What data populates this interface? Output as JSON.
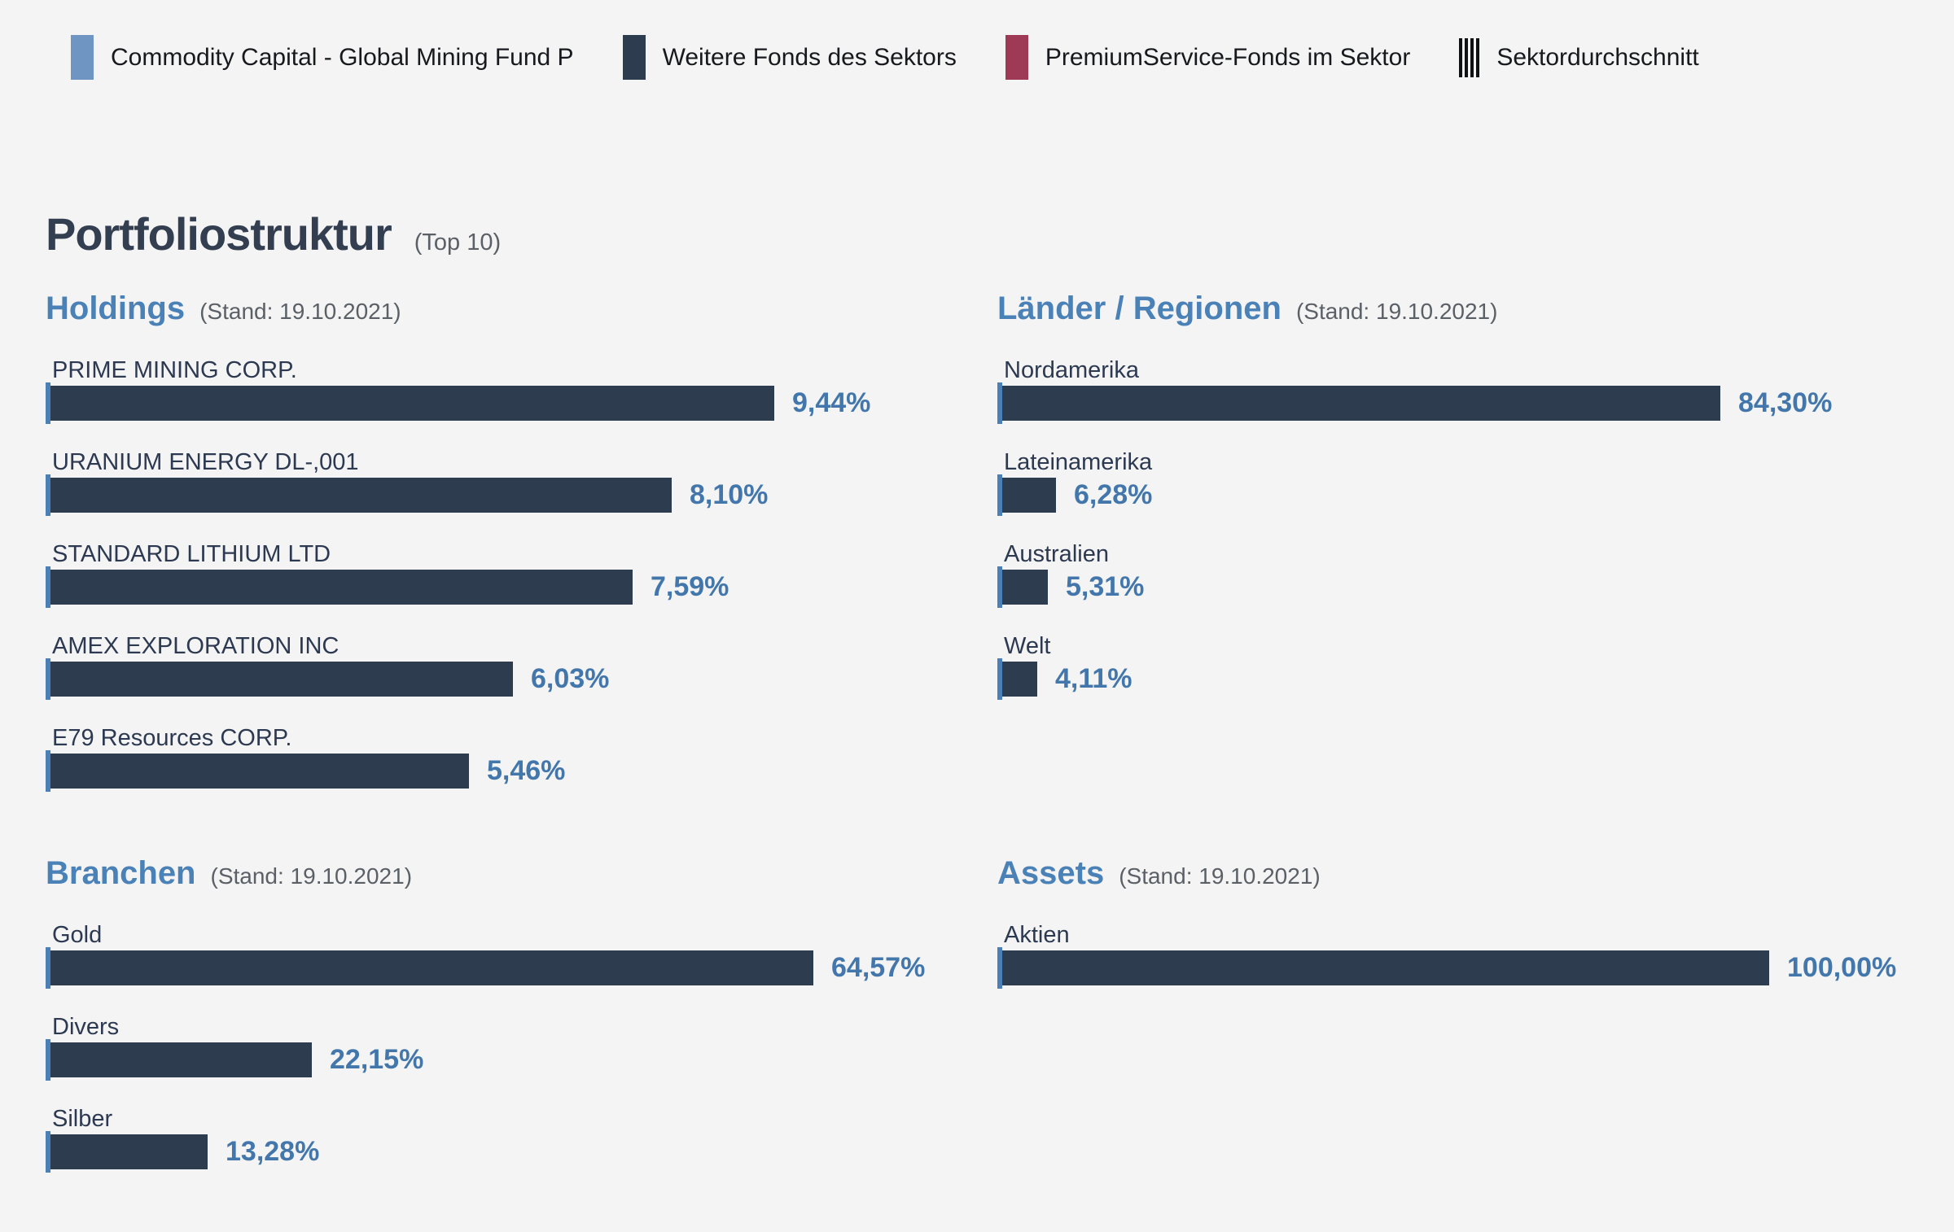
{
  "colors": {
    "background": "#f4f4f5",
    "navy_bar": "#2e3c50",
    "fund_blue": "#6f96c3",
    "premium_red": "#9e3a55",
    "marker_blue": "#4a80b5",
    "value_blue": "#4377ac",
    "heading_blue": "#4a81b6",
    "title_color": "#333e50",
    "label_color": "#2c3950",
    "muted": "#5b6066",
    "legend_text": "#17191d",
    "stripe_black": "#101114"
  },
  "legend": {
    "items": [
      {
        "label": "Commodity Capital - Global Mining Fund P",
        "swatch": "square",
        "color_key": "fund_blue",
        "icon": "fund-swatch-icon"
      },
      {
        "label": "Weitere Fonds des Sektors",
        "swatch": "square",
        "color_key": "navy_bar",
        "icon": "sector-funds-swatch-icon"
      },
      {
        "label": "PremiumService-Fonds im Sektor",
        "swatch": "square",
        "color_key": "premium_red",
        "icon": "premium-funds-swatch-icon"
      },
      {
        "label": "Sektordurchschnitt",
        "swatch": "stripes",
        "icon": "sector-average-icon"
      }
    ]
  },
  "page": {
    "title": "Portfoliostruktur",
    "title_suffix": "(Top 10)"
  },
  "chart_data": [
    {
      "id": "holdings",
      "type": "bar",
      "orientation": "horizontal",
      "title": "Holdings",
      "as_of": "(Stand: 19.10.2021)",
      "categories": [
        "PRIME MINING CORP.",
        "URANIUM ENERGY DL-,001",
        "STANDARD LITHIUM LTD",
        "AMEX EXPLORATION INC",
        "E79 Resources CORP."
      ],
      "values": [
        9.44,
        8.1,
        7.59,
        6.03,
        5.46
      ],
      "value_labels": [
        "9,44%",
        "8,10%",
        "7,59%",
        "6,03%",
        "5,46%"
      ],
      "unit": "%"
    },
    {
      "id": "laender",
      "type": "bar",
      "orientation": "horizontal",
      "title": "Länder / Regionen",
      "as_of": "(Stand: 19.10.2021)",
      "categories": [
        "Nordamerika",
        "Lateinamerika",
        "Australien",
        "Welt"
      ],
      "values": [
        84.3,
        6.28,
        5.31,
        4.11
      ],
      "value_labels": [
        "84,30%",
        "6,28%",
        "5,31%",
        "4,11%"
      ],
      "unit": "%"
    },
    {
      "id": "branchen",
      "type": "bar",
      "orientation": "horizontal",
      "title": "Branchen",
      "as_of": "(Stand: 19.10.2021)",
      "categories": [
        "Gold",
        "Divers",
        "Silber"
      ],
      "values": [
        64.57,
        22.15,
        13.28
      ],
      "value_labels": [
        "64,57%",
        "22,15%",
        "13,28%"
      ],
      "unit": "%"
    },
    {
      "id": "assets",
      "type": "bar",
      "orientation": "horizontal",
      "title": "Assets",
      "as_of": "(Stand: 19.10.2021)",
      "categories": [
        "Aktien"
      ],
      "values": [
        100.0
      ],
      "value_labels": [
        "100,00%"
      ],
      "unit": "%"
    }
  ]
}
